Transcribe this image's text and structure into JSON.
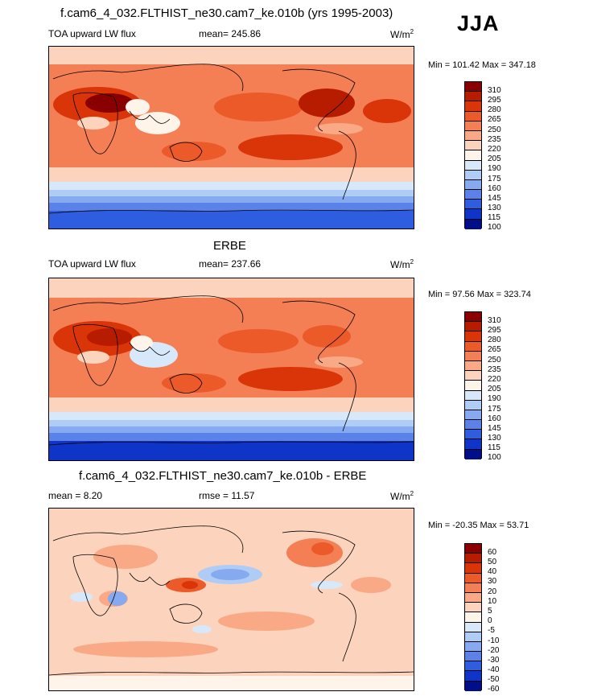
{
  "season": "JJA",
  "panels": [
    {
      "title": "f.cam6_4_032.FLTHIST_ne30.cam7_ke.010b (yrs 1995-2003)",
      "left_label": "TOA upward LW flux",
      "center_label": "mean= 245.86",
      "units": "W/m",
      "units_sup": "2",
      "minmax": "Min = 101.42 Max = 347.18",
      "colorbar_labels": [
        "310",
        "295",
        "280",
        "265",
        "250",
        "235",
        "220",
        "205",
        "190",
        "175",
        "160",
        "145",
        "130",
        "115",
        "100"
      ],
      "colors": [
        "#8a0000",
        "#b71c00",
        "#d93508",
        "#ec5a2a",
        "#f47f55",
        "#f9a985",
        "#fcd4bd",
        "#fff4ea",
        "#d7e8fb",
        "#aeccf5",
        "#86aaef",
        "#5b82e8",
        "#2f5de0",
        "#0f34c8",
        "#000e8a"
      ]
    },
    {
      "title": "ERBE",
      "left_label": "TOA upward LW flux",
      "center_label": "mean= 237.66",
      "units": "W/m",
      "units_sup": "2",
      "minmax": "Min =  97.56 Max = 323.74",
      "colorbar_labels": [
        "310",
        "295",
        "280",
        "265",
        "250",
        "235",
        "220",
        "205",
        "190",
        "175",
        "160",
        "145",
        "130",
        "115",
        "100"
      ],
      "colors": [
        "#8a0000",
        "#b71c00",
        "#d93508",
        "#ec5a2a",
        "#f47f55",
        "#f9a985",
        "#fcd4bd",
        "#fff4ea",
        "#d7e8fb",
        "#aeccf5",
        "#86aaef",
        "#5b82e8",
        "#2f5de0",
        "#0f34c8",
        "#000e8a"
      ]
    },
    {
      "title": "f.cam6_4_032.FLTHIST_ne30.cam7_ke.010b - ERBE",
      "left_label": "mean =   8.20",
      "center_label": "rmse =  11.57",
      "units": "W/m",
      "units_sup": "2",
      "minmax": "Min = -20.35 Max =  53.71",
      "colorbar_labels": [
        "60",
        "50",
        "40",
        "30",
        "20",
        "10",
        "5",
        "0",
        "-5",
        "-10",
        "-20",
        "-30",
        "-40",
        "-50",
        "-60"
      ],
      "colors": [
        "#8a0000",
        "#b71c00",
        "#d93508",
        "#ec5a2a",
        "#f47f55",
        "#f9a985",
        "#fcd4bd",
        "#fff4ea",
        "#d7e8fb",
        "#aeccf5",
        "#86aaef",
        "#5b82e8",
        "#2f5de0",
        "#0f34c8",
        "#000e8a"
      ]
    }
  ]
}
